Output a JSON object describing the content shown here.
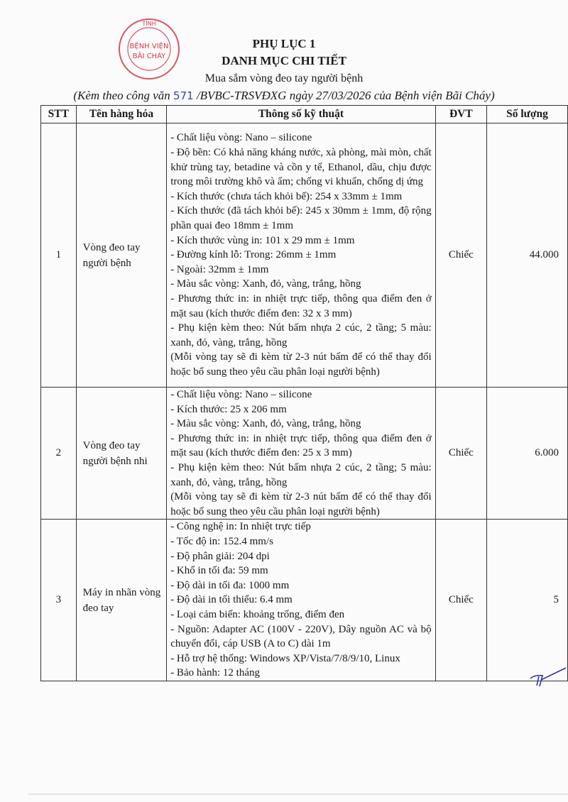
{
  "stamp": {
    "text_top": "TỈNH",
    "text_mid": "BỆNH VIỆN",
    "text_bottom": "BÃI CHÁY",
    "color": "#d23a4a"
  },
  "header": {
    "title1": "PHỤ LỤC 1",
    "title2": "DANH MỤC CHI TIẾT",
    "subtitle": "Mua sắm vòng đeo tay người bệnh",
    "ref_prefix": "(Kèm theo công văn ",
    "ref_number": "571",
    "ref_suffix": " /BVBC-TRSVĐXG ngày 27/03/2026 của Bệnh viện Bãi Cháy)"
  },
  "table": {
    "columns": [
      "STT",
      "Tên hàng hóa",
      "Thông số kỹ thuật",
      "ĐVT",
      "Số lượng"
    ],
    "rows": [
      {
        "stt": "1",
        "name": "Vòng đeo tay người bệnh",
        "unit": "Chiếc",
        "qty": "44.000",
        "specs": [
          "- Chất liệu vòng: Nano – silicone",
          "- Độ bền: Có khả năng kháng nước, xà phòng, mài mòn, chất khử trùng tay, betadine và cồn y tế, Ethanol, dầu, chịu được trong môi trường khô và ẩm; chống vi khuẩn, chống dị ứng",
          "- Kích thước (chưa tách khỏi bế): 254 x 33mm ± 1mm",
          "- Kích thước (đã tách khỏi bế): 245 x 30mm ± 1mm, độ rộng phần quai đeo 18mm ± 1mm",
          "- Kích thước vùng in: 101 x 29 mm ± 1mm",
          "- Đường kính lỗ: Trong: 26mm ± 1mm",
          "- Ngoài: 32mm ± 1mm",
          "- Màu sắc vòng: Xanh, đỏ, vàng, trắng, hồng",
          "- Phương thức in: in nhiệt trực tiếp, thông qua điểm đen ở mặt sau (kích thước điểm đen: 32 x 3 mm)",
          "- Phụ kiện kèm theo: Nút bấm nhựa 2 cúc, 2 tầng; 5 màu: xanh, đỏ, vàng, trắng, hồng",
          "(Mỗi vòng tay sẽ đi kèm từ 2-3 nút bấm để có thể thay đổi hoặc bổ sung theo yêu cầu phân loại người bệnh)"
        ]
      },
      {
        "stt": "2",
        "name": "Vòng đeo tay người bệnh nhi",
        "unit": "Chiếc",
        "qty": "6.000",
        "specs": [
          "- Chất liệu vòng: Nano – silicone",
          "- Kích thước: 25 x 206 mm",
          "- Màu sắc vòng: Xanh, đỏ, vàng, trắng, hồng",
          "- Phương thức in: in nhiệt trực tiếp, thông qua điểm đen ở mặt sau (kích thước điểm đen: 25 x 3 mm)",
          "- Phụ kiện kèm theo: Nút bấm nhựa 2 cúc, 2 tầng; 5 màu: xanh, đỏ, vàng, trắng, hồng",
          "(Mỗi vòng tay sẽ đi kèm từ 2-3 nút bấm để có thể thay đổi hoặc bổ sung theo yêu cầu phân loại người bệnh)"
        ]
      },
      {
        "stt": "3",
        "name": "Máy in nhãn vòng đeo tay",
        "unit": "Chiếc",
        "qty": "5",
        "specs": [
          "- Công nghệ in: In nhiệt trực tiếp",
          "- Tốc độ in: 152.4 mm/s",
          "- Độ phân giải: 204 dpi",
          "- Khổ in tối đa: 59 mm",
          "- Độ dài in tối đa: 1000 mm",
          "- Độ dài in tối thiểu: 6.4 mm",
          "- Loại cảm biến: khoảng trống, điểm đen",
          "- Nguồn: Adapter AC (100V - 220V), Dây nguồn AC và bộ chuyển đổi, cáp USB (A to C) dài 1m",
          "- Hỗ trợ hệ thống: Windows XP/Vista/7/8/9/10, Linux",
          "- Bảo hành: 12 tháng"
        ]
      }
    ]
  }
}
